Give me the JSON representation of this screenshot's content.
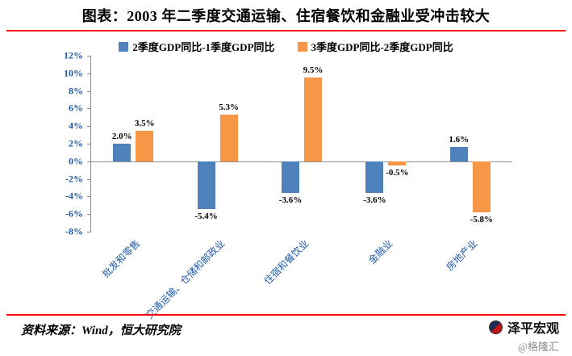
{
  "title": "图表：2003 年二季度交通运输、住宿餐饮和金融业受冲击较大",
  "footer": {
    "source": "资料来源：Wind，恒大研究院",
    "brand": "泽平宏观",
    "watermark": "@格隆汇"
  },
  "colors": {
    "series1": "#4f81bd",
    "series2": "#f79646",
    "accent_rule": "#fe0000",
    "axis_text": "#1f5aa8",
    "axis_line": "#8c8c8c"
  },
  "chart_data": {
    "type": "bar",
    "title": "图表：2003 年二季度交通运输、住宿餐饮和金融业受冲击较大",
    "categories": [
      "批发和零售",
      "交通运输、仓储和邮政业",
      "住宿和餐饮业",
      "金融业",
      "房地产业"
    ],
    "series": [
      {
        "name": "2季度GDP同比-1季度GDP同比",
        "color": "#4f81bd",
        "values": [
          2.0,
          -5.4,
          -3.6,
          -3.6,
          1.6
        ]
      },
      {
        "name": "3季度GDP同比-2季度GDP同比",
        "color": "#f79646",
        "values": [
          3.5,
          5.3,
          9.5,
          -0.5,
          -5.8
        ]
      }
    ],
    "value_labels": [
      [
        "2.0%",
        "-5.4%",
        "-3.6%",
        "-3.6%",
        "1.6%"
      ],
      [
        "3.5%",
        "5.3%",
        "9.5%",
        "-0.5%",
        "-5.8%"
      ]
    ],
    "ylim": [
      -8,
      12
    ],
    "ytick_step": 2,
    "ytick_labels": [
      "12%",
      "10%",
      "8%",
      "6%",
      "4%",
      "2%",
      "0%",
      "-2%",
      "-4%",
      "-6%",
      "-8%"
    ],
    "legend_position": "top",
    "grid": false
  }
}
